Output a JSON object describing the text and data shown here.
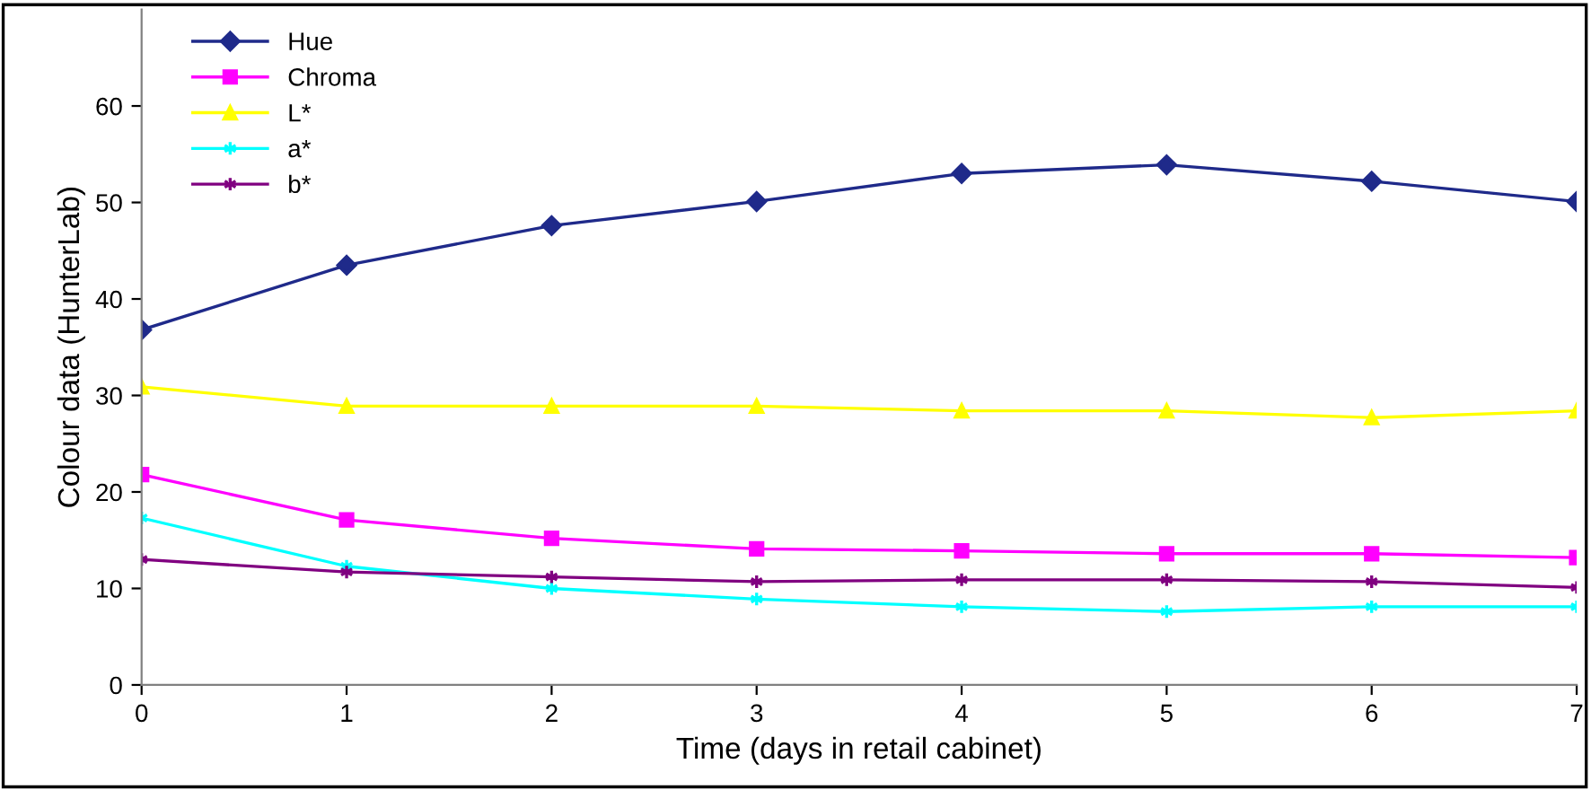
{
  "chart_data": {
    "type": "line",
    "xlabel": "Time (days in retail cabinet)",
    "ylabel": "Colour data (HunterLab)",
    "x": [
      0,
      1,
      2,
      3,
      4,
      5,
      6,
      7
    ],
    "xlim": [
      0,
      7
    ],
    "xticks": [
      0,
      1,
      2,
      3,
      4,
      5,
      6,
      7
    ],
    "ylim": [
      0,
      70
    ],
    "yticks": [
      0,
      10,
      20,
      30,
      40,
      50,
      60
    ],
    "grid": false,
    "legend": "top left",
    "series": [
      {
        "name": "Hue",
        "color": "#1f2a8a",
        "marker": "diamond",
        "values": [
          36.8,
          43.5,
          47.6,
          50.1,
          53.0,
          53.9,
          52.2,
          50.1
        ]
      },
      {
        "name": "Chroma",
        "color": "#ff00ff",
        "marker": "square",
        "values": [
          21.8,
          17.1,
          15.2,
          14.1,
          13.9,
          13.6,
          13.6,
          13.2
        ]
      },
      {
        "name": "L*",
        "color": "#ffff00",
        "marker": "triangle",
        "values": [
          30.9,
          28.9,
          28.9,
          28.9,
          28.4,
          28.4,
          27.7,
          28.4
        ]
      },
      {
        "name": "a*",
        "color": "#00ffff",
        "marker": "cross",
        "values": [
          17.3,
          12.3,
          10.0,
          8.9,
          8.1,
          7.6,
          8.1,
          8.1
        ]
      },
      {
        "name": "b*",
        "color": "#800080",
        "marker": "cross",
        "values": [
          13.0,
          11.7,
          11.2,
          10.7,
          10.9,
          10.9,
          10.7,
          10.1
        ]
      }
    ]
  }
}
